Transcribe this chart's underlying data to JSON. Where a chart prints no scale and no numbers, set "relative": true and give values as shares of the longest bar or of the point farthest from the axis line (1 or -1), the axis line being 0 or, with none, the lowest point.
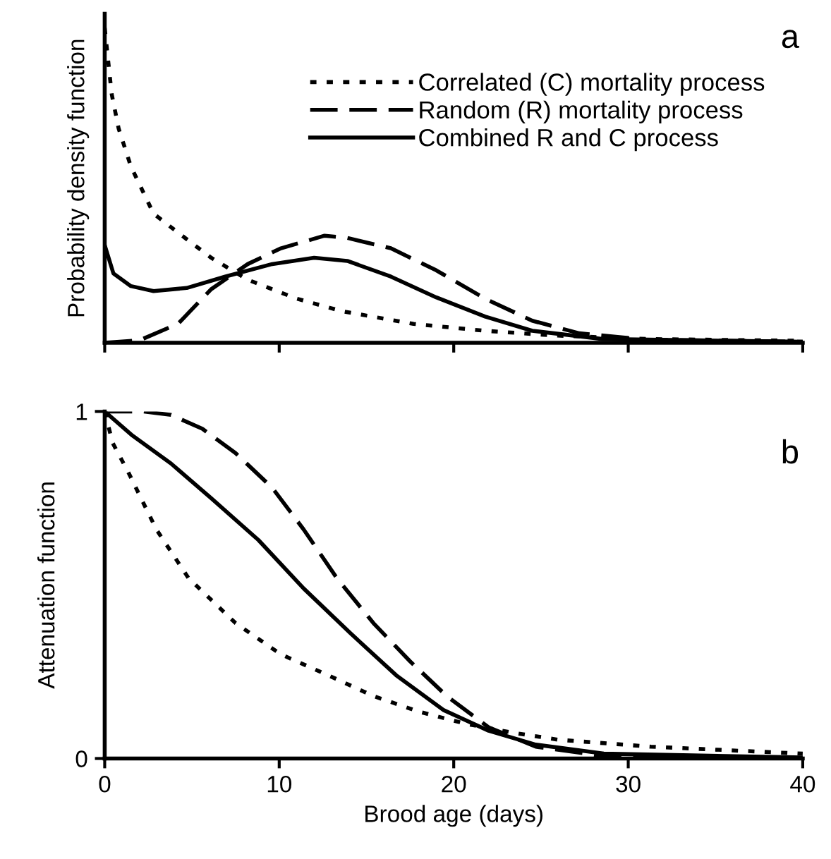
{
  "chart_data": [
    {
      "type": "line",
      "relative": true,
      "ylabel": "Probability density function",
      "xlim": [
        0,
        40
      ],
      "xticks": [
        0,
        10,
        20,
        30,
        40
      ],
      "tick_labels": false,
      "legend": "top right",
      "annotations": [
        "a"
      ],
      "series": [
        {
          "name": "Correlated (C) mortality process",
          "color": "#000000",
          "line_style": "dotted",
          "x": [
            0,
            0.4,
            0.8,
            1.5,
            2.8,
            4.2,
            6.1,
            8.2,
            11,
            13.6,
            17.7,
            21.8,
            25.8,
            31,
            40
          ],
          "values": [
            1.0,
            0.79,
            0.68,
            0.56,
            0.41,
            0.35,
            0.27,
            0.2,
            0.14,
            0.1,
            0.06,
            0.038,
            0.023,
            0.012,
            0.006
          ]
        },
        {
          "name": "Random (R) mortality process",
          "color": "#000000",
          "line_style": "dashed",
          "x": [
            0,
            2,
            4.2,
            6.1,
            8.2,
            10.1,
            12.6,
            13.9,
            16.4,
            19,
            21.8,
            24.5,
            27.2,
            31,
            40
          ],
          "values": [
            0,
            0.008,
            0.06,
            0.17,
            0.25,
            0.3,
            0.34,
            0.333,
            0.3,
            0.23,
            0.14,
            0.07,
            0.03,
            0.01,
            0.003
          ]
        },
        {
          "name": "Combined R and C process",
          "color": "#000000",
          "line_style": "solid",
          "x": [
            0,
            0.5,
            1.5,
            2.8,
            4.7,
            6.9,
            9.6,
            12,
            13.9,
            16.4,
            19,
            21.8,
            24.5,
            28.5,
            40
          ],
          "values": [
            0.31,
            0.22,
            0.18,
            0.164,
            0.174,
            0.21,
            0.25,
            0.27,
            0.26,
            0.21,
            0.144,
            0.083,
            0.038,
            0.012,
            0.003
          ]
        }
      ]
    },
    {
      "type": "line",
      "ylabel": "Attenuation function",
      "xlabel": "Brood age (days)",
      "xlim": [
        0,
        40
      ],
      "xticks": [
        0,
        10,
        20,
        30,
        40
      ],
      "ylim": [
        0,
        1
      ],
      "yticks": [
        0,
        1
      ],
      "annotations": [
        "b"
      ],
      "series": [
        {
          "color": "#000000",
          "line_style": "dotted",
          "x": [
            0,
            0.45,
            1.4,
            2.96,
            4.8,
            7.5,
            10.1,
            12.8,
            15.4,
            18,
            20.7,
            23.3,
            26,
            31.3,
            40
          ],
          "values": [
            1,
            0.91,
            0.82,
            0.66,
            0.52,
            0.39,
            0.3,
            0.24,
            0.18,
            0.135,
            0.1,
            0.075,
            0.054,
            0.034,
            0.014
          ]
        },
        {
          "color": "#000000",
          "line_style": "dashed",
          "x": [
            0,
            2.2,
            3.8,
            5.6,
            7.5,
            9.6,
            11.4,
            13.3,
            15.4,
            17.5,
            19.6,
            22,
            24.7,
            28.6,
            40
          ],
          "values": [
            1,
            1,
            0.99,
            0.95,
            0.88,
            0.78,
            0.66,
            0.52,
            0.39,
            0.28,
            0.18,
            0.09,
            0.034,
            0.007,
            0
          ]
        },
        {
          "color": "#000000",
          "line_style": "solid",
          "x": [
            0,
            1.6,
            3.8,
            6.1,
            8.8,
            11.4,
            14.1,
            16.7,
            19.4,
            22,
            24.7,
            28.6,
            40
          ],
          "values": [
            1,
            0.93,
            0.85,
            0.75,
            0.63,
            0.49,
            0.36,
            0.24,
            0.14,
            0.08,
            0.04,
            0.014,
            0.003
          ]
        }
      ]
    }
  ]
}
